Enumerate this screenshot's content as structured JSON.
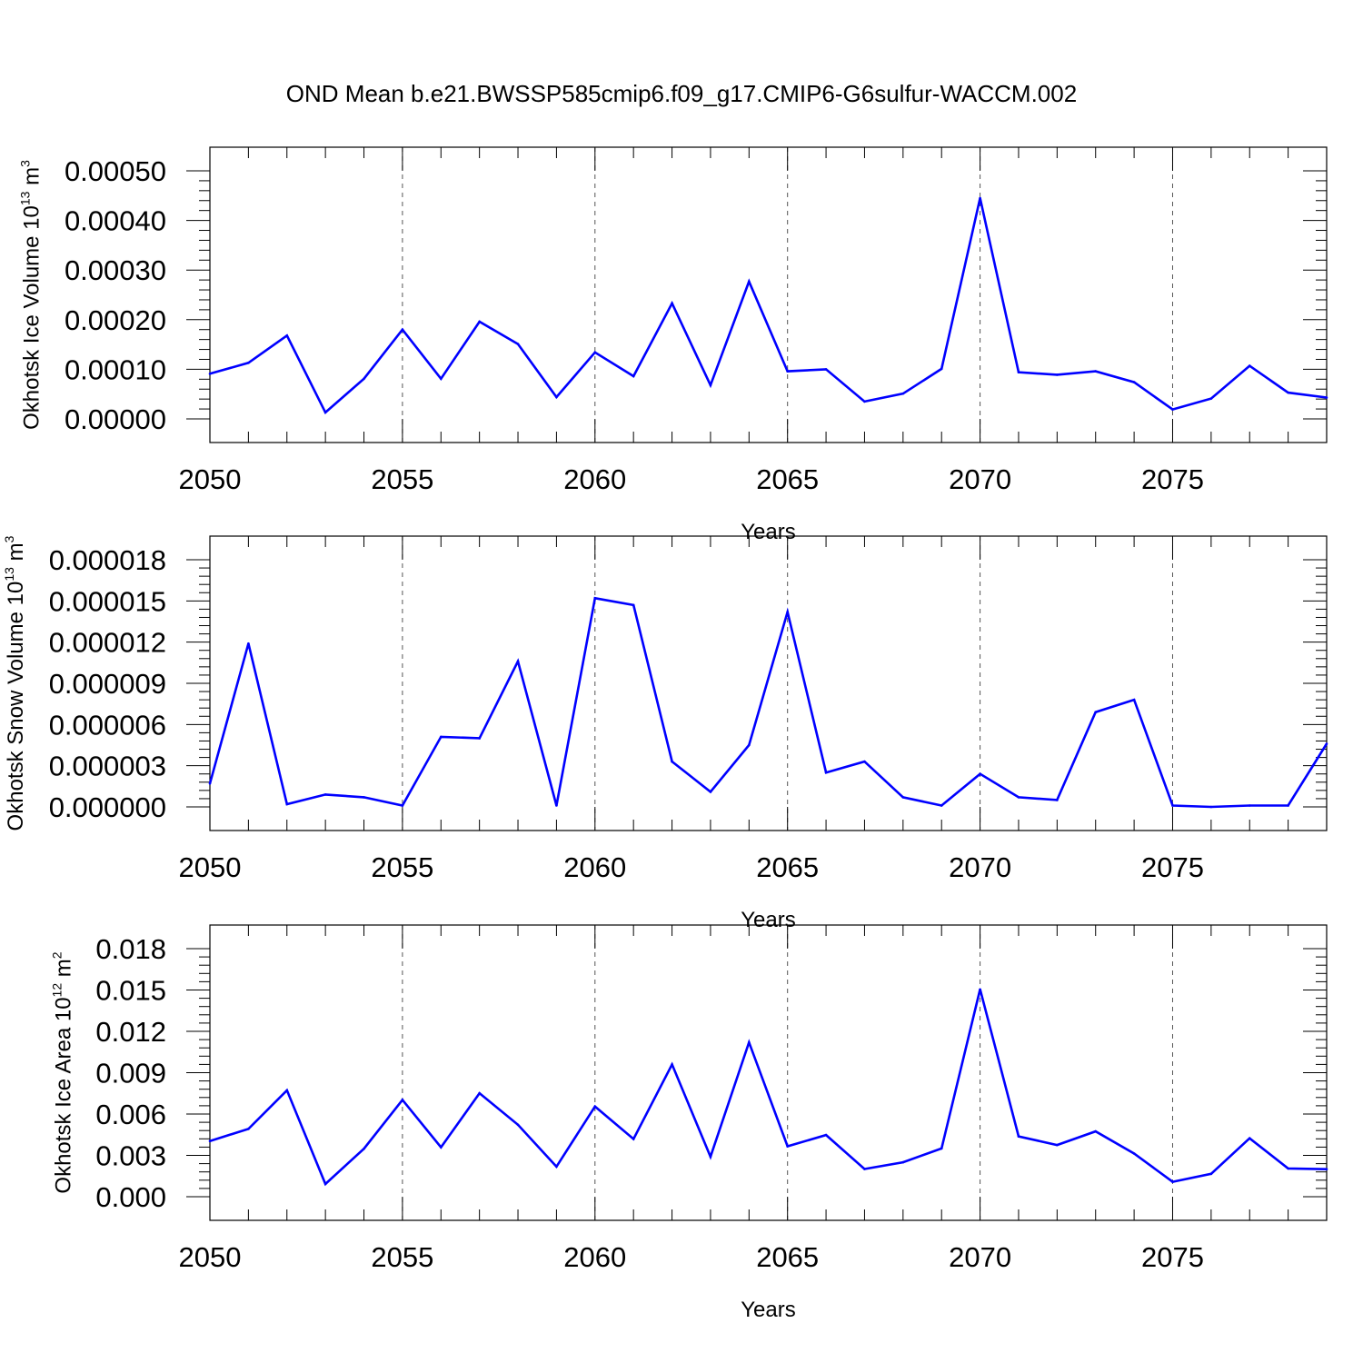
{
  "figure": {
    "title": "OND Mean b.e21.BWSSP585cmip6.f09_g17.CMIP6-G6sulfur-WACCM.002"
  },
  "colors": {
    "line": "#0000ff",
    "axis": "#000000",
    "grid": "#555555"
  },
  "chart_data": [
    {
      "type": "line",
      "id": "ice-volume",
      "ylabel": {
        "text": "Okhotsk Ice Volume 10",
        "superscript": "13",
        "unit": " m",
        "unit_superscript": "3"
      },
      "xlabel": "Years",
      "xlim": [
        2050,
        2079
      ],
      "ylim": [
        0,
        0.0005
      ],
      "x_ticks": [
        "2050",
        "2055",
        "2060",
        "2065",
        "2070",
        "2075"
      ],
      "y_ticks": [
        "0.00000",
        "0.00010",
        "0.00020",
        "0.00030",
        "0.00040",
        "0.00050"
      ],
      "grid": "vertical dashed at major x ticks",
      "x": [
        2050,
        2051,
        2052,
        2053,
        2054,
        2055,
        2056,
        2057,
        2058,
        2059,
        2060,
        2061,
        2062,
        2063,
        2064,
        2065,
        2066,
        2067,
        2068,
        2069,
        2070,
        2071,
        2072,
        2073,
        2074,
        2075,
        2076,
        2077,
        2078,
        2079
      ],
      "values": [
        9.1e-05,
        0.000113,
        0.000168,
        1.3e-05,
        8.1e-05,
        0.00018,
        8.1e-05,
        0.000196,
        0.000151,
        4.4e-05,
        0.000134,
        8.6e-05,
        0.000233,
        6.8e-05,
        0.000277,
        9.6e-05,
        0.0001,
        3.5e-05,
        5.1e-05,
        0.000101,
        0.000445,
        9.4e-05,
        8.9e-05,
        9.6e-05,
        7.4e-05,
        1.9e-05,
        4.1e-05,
        0.000107,
        5.3e-05,
        4.3e-05
      ]
    },
    {
      "type": "line",
      "id": "snow-volume",
      "ylabel": {
        "text": "Okhotsk Snow Volume 10",
        "superscript": "13",
        "unit": " m",
        "unit_superscript": "3"
      },
      "xlabel": "Years",
      "xlim": [
        2050,
        2079
      ],
      "ylim": [
        0,
        1.8e-05
      ],
      "x_ticks": [
        "2050",
        "2055",
        "2060",
        "2065",
        "2070",
        "2075"
      ],
      "y_ticks": [
        "0.000000",
        "0.000003",
        "0.000006",
        "0.000009",
        "0.000012",
        "0.000015",
        "0.000018"
      ],
      "grid": "vertical dashed at major x ticks",
      "x": [
        2050,
        2051,
        2052,
        2053,
        2054,
        2055,
        2056,
        2057,
        2058,
        2059,
        2060,
        2061,
        2062,
        2063,
        2064,
        2065,
        2066,
        2067,
        2068,
        2069,
        2070,
        2071,
        2072,
        2073,
        2074,
        2075,
        2076,
        2077,
        2078,
        2079
      ],
      "values": [
        1.7e-06,
        1.19e-05,
        2e-07,
        9e-07,
        7e-07,
        1e-07,
        5.1e-06,
        5e-06,
        1.06e-05,
        1e-07,
        1.52e-05,
        1.47e-05,
        3.3e-06,
        1.1e-06,
        4.5e-06,
        1.42e-05,
        2.5e-06,
        3.3e-06,
        7e-07,
        1e-07,
        2.4e-06,
        7e-07,
        5e-07,
        6.9e-06,
        7.8e-06,
        1e-07,
        0.0,
        1e-07,
        1e-07,
        4.6e-06
      ]
    },
    {
      "type": "line",
      "id": "ice-area",
      "ylabel": {
        "text": "Okhotsk Ice Area 10",
        "superscript": "12",
        "unit": " m",
        "unit_superscript": "2"
      },
      "xlabel": "Years",
      "xlim": [
        2050,
        2079
      ],
      "ylim": [
        0,
        0.018
      ],
      "x_ticks": [
        "2050",
        "2055",
        "2060",
        "2065",
        "2070",
        "2075"
      ],
      "y_ticks": [
        "0.000",
        "0.003",
        "0.006",
        "0.009",
        "0.012",
        "0.015",
        "0.018"
      ],
      "grid": "vertical dashed at major x ticks",
      "x": [
        2050,
        2051,
        2052,
        2053,
        2054,
        2055,
        2056,
        2057,
        2058,
        2059,
        2060,
        2061,
        2062,
        2063,
        2064,
        2065,
        2066,
        2067,
        2068,
        2069,
        2070,
        2071,
        2072,
        2073,
        2074,
        2075,
        2076,
        2077,
        2078,
        2079
      ],
      "values": [
        0.00404,
        0.00492,
        0.00772,
        0.00092,
        0.00348,
        0.00703,
        0.00359,
        0.00751,
        0.00522,
        0.00218,
        0.00655,
        0.00419,
        0.0096,
        0.0029,
        0.0112,
        0.00366,
        0.00448,
        0.00201,
        0.0025,
        0.0035,
        0.01505,
        0.00438,
        0.00375,
        0.00474,
        0.00313,
        0.00108,
        0.00166,
        0.00424,
        0.00205,
        0.002
      ]
    }
  ]
}
